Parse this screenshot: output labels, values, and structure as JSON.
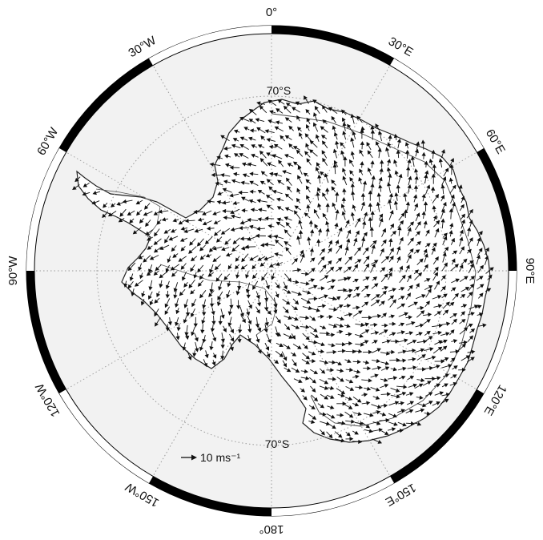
{
  "map": {
    "projection": "south-polar-stereographic",
    "longitude_labels": [
      "0°",
      "30°E",
      "60°E",
      "90°E",
      "120°E",
      "150°E",
      "180°",
      "150°W",
      "120°W",
      "90°W",
      "60°W",
      "30°W"
    ],
    "latitude_labels": [
      "70°S",
      "70°S"
    ],
    "scale_arrow": {
      "label": "10 ms⁻¹",
      "speed_ms": 10
    },
    "colors": {
      "ocean": "#f2f2f2",
      "land": "#ffffff",
      "frame": "#000000",
      "arrows": "#111111",
      "grid": "#9a9a9a"
    },
    "graticule": "dotted",
    "vector_field": "surface wind vectors over Antarctica"
  }
}
